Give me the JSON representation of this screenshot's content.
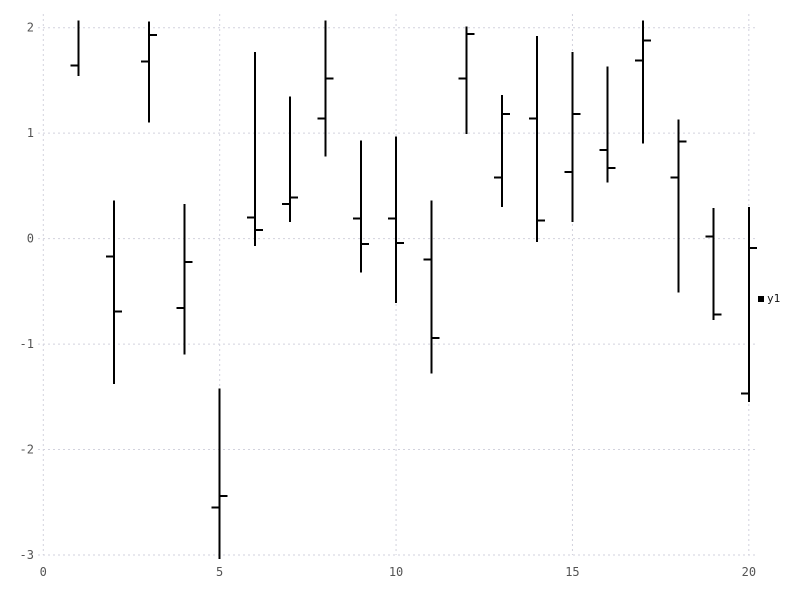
{
  "chart_data": {
    "type": "ohlc",
    "title": "",
    "xlabel": "",
    "ylabel": "",
    "grid": true,
    "legend_position": "right-middle",
    "xlim": [
      -0.15,
      20.26
    ],
    "ylim": [
      -3.0,
      2.13
    ],
    "x_ticks": [
      {
        "v": 0,
        "label": "0"
      },
      {
        "v": 5,
        "label": "5"
      },
      {
        "v": 10,
        "label": "10"
      },
      {
        "v": 15,
        "label": "15"
      },
      {
        "v": 20,
        "label": "20"
      }
    ],
    "y_ticks": [
      {
        "v": 2,
        "label": "2"
      },
      {
        "v": 1,
        "label": "1"
      },
      {
        "v": 0,
        "label": "0"
      },
      {
        "v": -1,
        "label": "-1"
      },
      {
        "v": -2,
        "label": "-2"
      },
      {
        "v": -3,
        "label": "-3"
      }
    ],
    "legend": {
      "label": "y1",
      "marker": "black-square"
    },
    "series": [
      {
        "name": "y1",
        "points": [
          {
            "x": 1,
            "open": 1.64,
            "high": 2.07,
            "low": 1.54,
            "close": null
          },
          {
            "x": 2,
            "open": -0.17,
            "high": 0.36,
            "low": -1.38,
            "close": -0.69
          },
          {
            "x": 3,
            "open": 1.68,
            "high": 2.06,
            "low": 1.1,
            "close": 1.93
          },
          {
            "x": 4,
            "open": -0.66,
            "high": 0.33,
            "low": -1.1,
            "close": -0.22
          },
          {
            "x": 5,
            "open": -2.55,
            "high": -1.42,
            "low": -3.04,
            "close": -2.44
          },
          {
            "x": 6,
            "open": 0.2,
            "high": 1.77,
            "low": -0.07,
            "close": 0.08
          },
          {
            "x": 7,
            "open": 0.33,
            "high": 1.35,
            "low": 0.16,
            "close": 0.39
          },
          {
            "x": 8,
            "open": 1.14,
            "high": 2.07,
            "low": 0.78,
            "close": 1.52
          },
          {
            "x": 9,
            "open": 0.19,
            "high": 0.93,
            "low": -0.32,
            "close": -0.05
          },
          {
            "x": 10,
            "open": 0.19,
            "high": 0.97,
            "low": -0.61,
            "close": -0.04
          },
          {
            "x": 11,
            "open": -0.2,
            "high": 0.36,
            "low": -1.28,
            "close": -0.94
          },
          {
            "x": 12,
            "open": 1.52,
            "high": 2.01,
            "low": 0.99,
            "close": 1.94
          },
          {
            "x": 13,
            "open": 0.58,
            "high": 1.36,
            "low": 0.3,
            "close": 1.18
          },
          {
            "x": 14,
            "open": 1.14,
            "high": 1.92,
            "low": -0.03,
            "close": 0.17
          },
          {
            "x": 15,
            "open": 0.63,
            "high": 1.77,
            "low": 0.16,
            "close": 1.18
          },
          {
            "x": 16,
            "open": 0.84,
            "high": 1.63,
            "low": 0.53,
            "close": 0.67
          },
          {
            "x": 17,
            "open": 1.69,
            "high": 2.07,
            "low": 0.9,
            "close": 1.88
          },
          {
            "x": 18,
            "open": 0.58,
            "high": 1.13,
            "low": -0.51,
            "close": 0.92
          },
          {
            "x": 19,
            "open": 0.02,
            "high": 0.29,
            "low": -0.77,
            "close": -0.72
          },
          {
            "x": 20,
            "open": -1.47,
            "high": 0.3,
            "low": -1.55,
            "close": -0.09
          }
        ]
      }
    ],
    "colors": {
      "series": "#000000",
      "grid": "#d2d2dd",
      "tick_label": "#545454",
      "background": "#ffffff"
    }
  }
}
